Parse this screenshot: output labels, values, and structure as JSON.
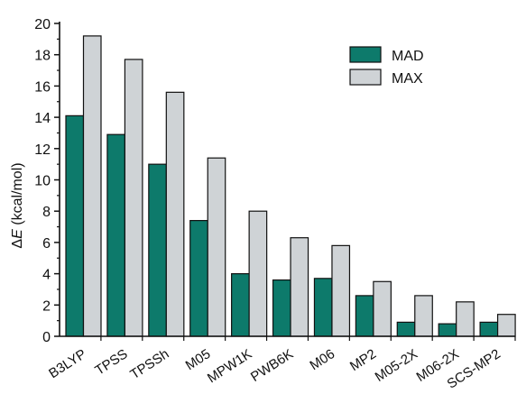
{
  "chart_data": {
    "type": "bar",
    "categories": [
      "B3LYP",
      "TPSS",
      "TPSSh",
      "M05",
      "MPW1K",
      "PWB6K",
      "M06",
      "MP2",
      "M05-2X",
      "M06-2X",
      "SCS-MP2"
    ],
    "series": [
      {
        "name": "MAD",
        "color": "#0d7a6b",
        "values": [
          14.1,
          12.9,
          11.0,
          7.4,
          4.0,
          3.6,
          3.7,
          2.6,
          0.9,
          0.8,
          0.9
        ]
      },
      {
        "name": "MAX",
        "color": "#cfd3d6",
        "values": [
          19.2,
          17.7,
          15.6,
          11.4,
          8.0,
          6.3,
          5.8,
          3.5,
          2.6,
          2.2,
          1.4
        ]
      }
    ],
    "ylabel_prefix": "Δ",
    "ylabel_italic": "E",
    "ylabel_suffix": " (kcal/mol)",
    "ylim": [
      0,
      20
    ],
    "yticks": [
      0,
      2,
      4,
      6,
      8,
      10,
      12,
      14,
      16,
      18,
      20
    ],
    "legend_position": "top-right"
  }
}
